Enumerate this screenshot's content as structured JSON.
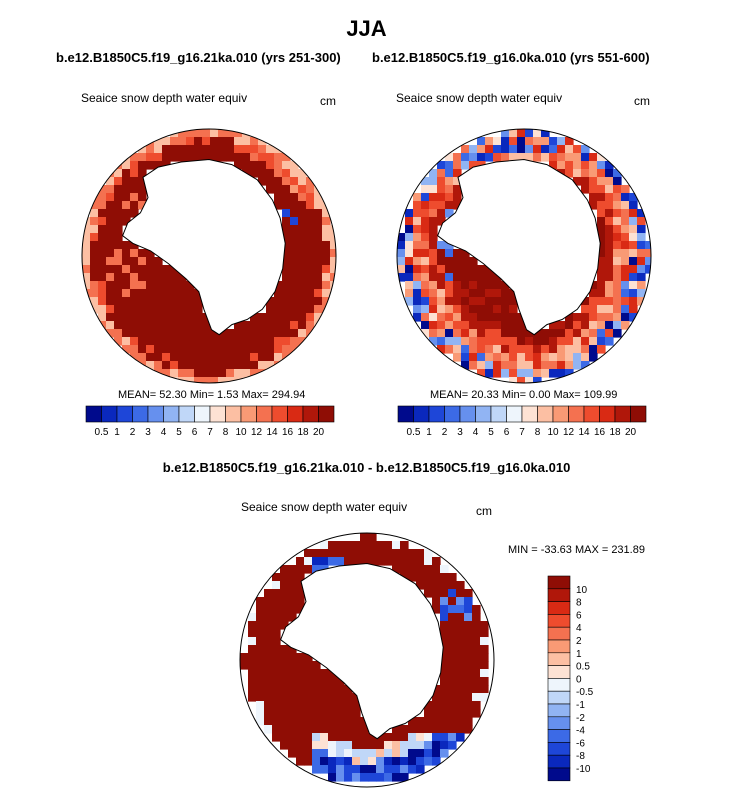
{
  "figure": {
    "title": "JJA",
    "diff_title": "b.e12.B1850C5.f19_g16.21ka.010 - b.e12.B1850C5.f19_g16.0ka.010"
  },
  "colors": {
    "scale11": [
      "#000a8c",
      "#0a28bd",
      "#1e46d8",
      "#3c6ae6",
      "#6690ee",
      "#91b4f3",
      "#c0d7f8",
      "#eef5fc",
      "#fde2d4",
      "#fcbfa3",
      "#f99a75",
      "#f47150",
      "#ee4c2e",
      "#d92a14",
      "#b0170a",
      "#8f0d05"
    ],
    "land": "#ffffff",
    "ocean": "#ffffff",
    "coast": "#000000"
  },
  "chart_data": [
    {
      "type": "heatmap",
      "projection": "south-polar-stereographic",
      "run_title": "b.e12.B1850C5.f19_g16.21ka.010 (yrs 251-300)",
      "variable": "Seaice snow depth water equiv",
      "units": "cm",
      "stats_text": "MEAN=  52.30  Min=   1.53  Max= 294.94",
      "mean": 52.3,
      "min": 1.53,
      "max": 294.94,
      "colorbar_levels": [
        "0.5",
        "1",
        "2",
        "3",
        "4",
        "5",
        "6",
        "7",
        "8",
        "10",
        "12",
        "14",
        "16",
        "18",
        "20"
      ],
      "colorbar_orientation": "horizontal",
      "field_pattern": "glacial"
    },
    {
      "type": "heatmap",
      "projection": "south-polar-stereographic",
      "run_title": "b.e12.B1850C5.f19_g16.0ka.010 (yrs 551-600)",
      "variable": "Seaice snow depth water equiv",
      "units": "cm",
      "stats_text": "MEAN=  20.33  Min=   0.00  Max= 109.99",
      "mean": 20.33,
      "min": 0.0,
      "max": 109.99,
      "colorbar_levels": [
        "0.5",
        "1",
        "2",
        "3",
        "4",
        "5",
        "6",
        "7",
        "8",
        "10",
        "12",
        "14",
        "16",
        "18",
        "20"
      ],
      "colorbar_orientation": "horizontal",
      "field_pattern": "modern"
    },
    {
      "type": "heatmap",
      "projection": "south-polar-stereographic",
      "run_title": "",
      "variable": "Seaice snow depth water equiv",
      "units": "cm",
      "stats_text": "MIN = -33.63 MAX = 231.89",
      "min": -33.63,
      "max": 231.89,
      "colorbar_levels": [
        "10",
        "8",
        "6",
        "4",
        "2",
        "1",
        "0.5",
        "0",
        "-0.5",
        "-1",
        "-2",
        "-4",
        "-6",
        "-8",
        "-10"
      ],
      "colorbar_orientation": "vertical",
      "field_pattern": "difference"
    }
  ]
}
